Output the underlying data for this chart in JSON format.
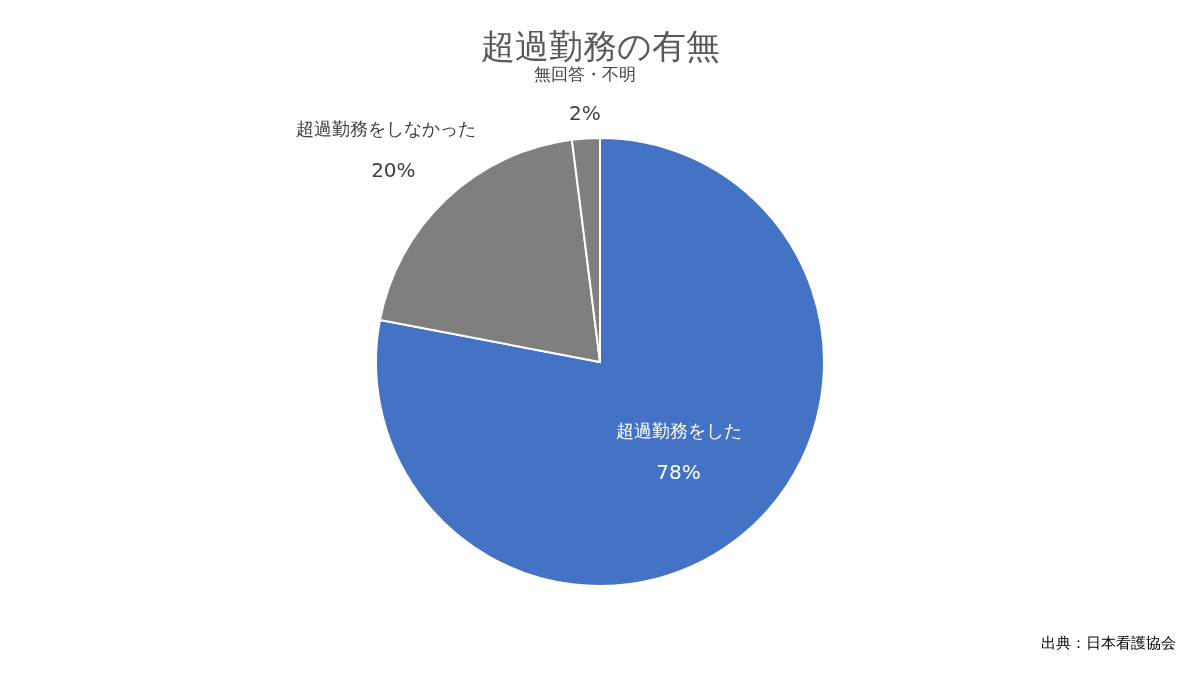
{
  "chart_data": {
    "type": "pie",
    "title": "超過勤務の有無",
    "categories": [
      "超過勤務をした",
      "超過勤務をしなかった",
      "無回答・不明"
    ],
    "values": [
      78,
      20,
      2
    ],
    "colors": [
      "#4472c4",
      "#7f7f7f",
      "#7f7f7f"
    ],
    "value_labels": [
      "78%",
      "20%",
      "2%"
    ],
    "annotations": [
      "出典：日本看護協会"
    ]
  }
}
